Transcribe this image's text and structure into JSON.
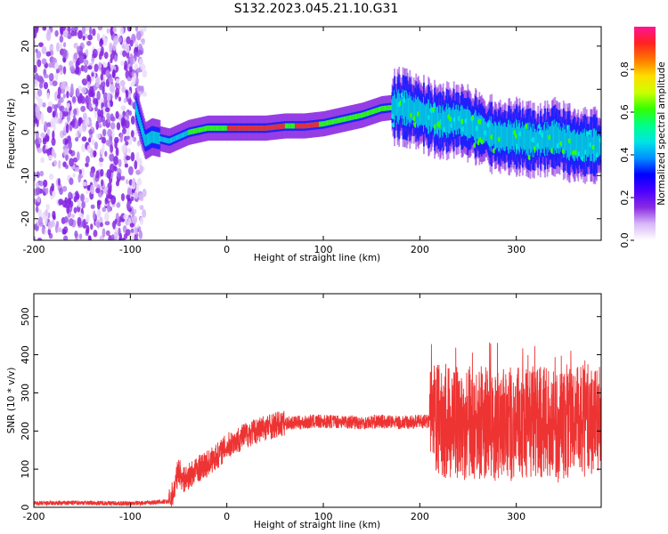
{
  "figure": {
    "title": "S132.2023.045.21.10.G31"
  },
  "chart_data": [
    {
      "type": "heatmap",
      "xlabel": "Height of straight line (km)",
      "ylabel": "Frequency (Hz)",
      "xlim": [
        -200,
        388
      ],
      "ylim": [
        -25,
        24.5
      ],
      "x_ticks": [
        "-200",
        "-100",
        "0",
        "100",
        "200",
        "300"
      ],
      "y_ticks": [
        "20",
        "10",
        "0",
        "-10",
        "-20"
      ],
      "colorbar": {
        "label": "Normalized spectral amplitude",
        "range": [
          0.0,
          1.0
        ],
        "ticks": [
          "0.0",
          "0.2",
          "0.4",
          "0.6",
          "0.8"
        ],
        "colors": [
          "#ffffff",
          "#d8b8f8",
          "#8a2be2",
          "#4b00ff",
          "#0000ff",
          "#0090ff",
          "#00e5e5",
          "#00ff88",
          "#33ff00",
          "#ccff00",
          "#ffdd00",
          "#ff7700",
          "#ff2222",
          "#ff1493"
        ]
      },
      "noise_region_x": [
        -200,
        -85
      ],
      "ridge": {
        "x": [
          -95,
          -85,
          -78,
          -60,
          -40,
          -20,
          0,
          20,
          40,
          60,
          80,
          100,
          120,
          140,
          160,
          180,
          200,
          220,
          240,
          260,
          280,
          300,
          320,
          340,
          360,
          388
        ],
        "y": [
          6,
          -2,
          -1,
          -2,
          0,
          1,
          1,
          1,
          1,
          1.5,
          1.5,
          2,
          3,
          4,
          5.5,
          6,
          4.5,
          2.5,
          3,
          1,
          -1,
          -1,
          -2,
          -1,
          -3,
          -3
        ]
      },
      "grid": false
    },
    {
      "type": "line",
      "xlabel": "Height of straight line (km)",
      "ylabel": "SNR (10 * v/v)",
      "xlim": [
        -200,
        388
      ],
      "ylim": [
        0,
        560
      ],
      "x_ticks": [
        "-200",
        "-100",
        "0",
        "100",
        "200",
        "300"
      ],
      "y_ticks": [
        "0",
        "100",
        "200",
        "300",
        "400",
        "500"
      ],
      "color": "#ee3333",
      "series": [
        {
          "x": [
            -200,
            -150,
            -100,
            -60,
            -55,
            -50,
            -45,
            -40,
            -30,
            -20,
            -10,
            0,
            10,
            20,
            30,
            40,
            50,
            60,
            70,
            80,
            90,
            100,
            120,
            140,
            160,
            180,
            200,
            208,
            212,
            220,
            240,
            260,
            280,
            300,
            320,
            340,
            360,
            388
          ],
          "values": [
            10,
            12,
            10,
            15,
            40,
            100,
            70,
            80,
            100,
            115,
            135,
            160,
            175,
            190,
            200,
            210,
            215,
            220,
            222,
            222,
            225,
            225,
            225,
            222,
            225,
            222,
            225,
            225,
            220,
            230,
            220,
            225,
            215,
            220,
            225,
            210,
            220,
            235
          ]
        }
      ],
      "grid": false
    }
  ]
}
